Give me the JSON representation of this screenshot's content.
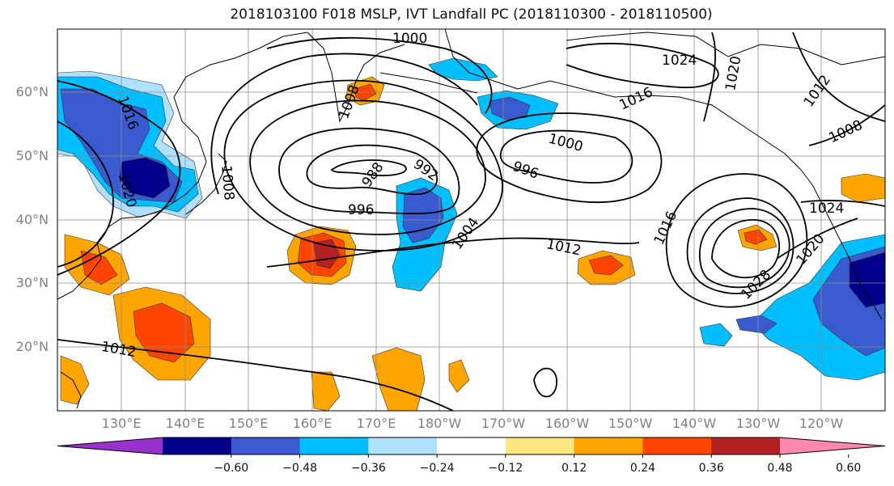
{
  "title": "2018103100 F018 MSLP, IVT Landfall PC (2018110300 - 2018110500)",
  "lat_labels": [
    "60°N",
    "50°N",
    "40°N",
    "30°N",
    "20°N"
  ],
  "lon_labels": [
    "130°E",
    "140°E",
    "150°E",
    "160°E",
    "170°E",
    "180°W",
    "170°W",
    "160°W",
    "150°W",
    "140°W",
    "130°W",
    "120°W"
  ],
  "colorbar": {
    "colors": [
      "#9932cc",
      "#00008b",
      "#3a5bd0",
      "#00bfff",
      "#b0e0ff",
      "#ffffff",
      "#ffe680",
      "#ffa500",
      "#ff4500",
      "#b22222",
      "#ff88b0"
    ],
    "tick_labels": [
      "−0.60",
      "−0.48",
      "−0.36",
      "−0.24",
      "−0.12",
      "0.12",
      "0.24",
      "0.36",
      "0.48",
      "0.60"
    ]
  },
  "contours": {
    "labels": [
      "1000",
      "1024",
      "1020",
      "1012",
      "1016",
      "1016",
      "1008",
      "1008",
      "1020",
      "1008",
      "988",
      "992",
      "1000",
      "996",
      "996",
      "1024",
      "1004",
      "1016",
      "1012",
      "1020",
      "1028",
      "1012"
    ]
  }
}
